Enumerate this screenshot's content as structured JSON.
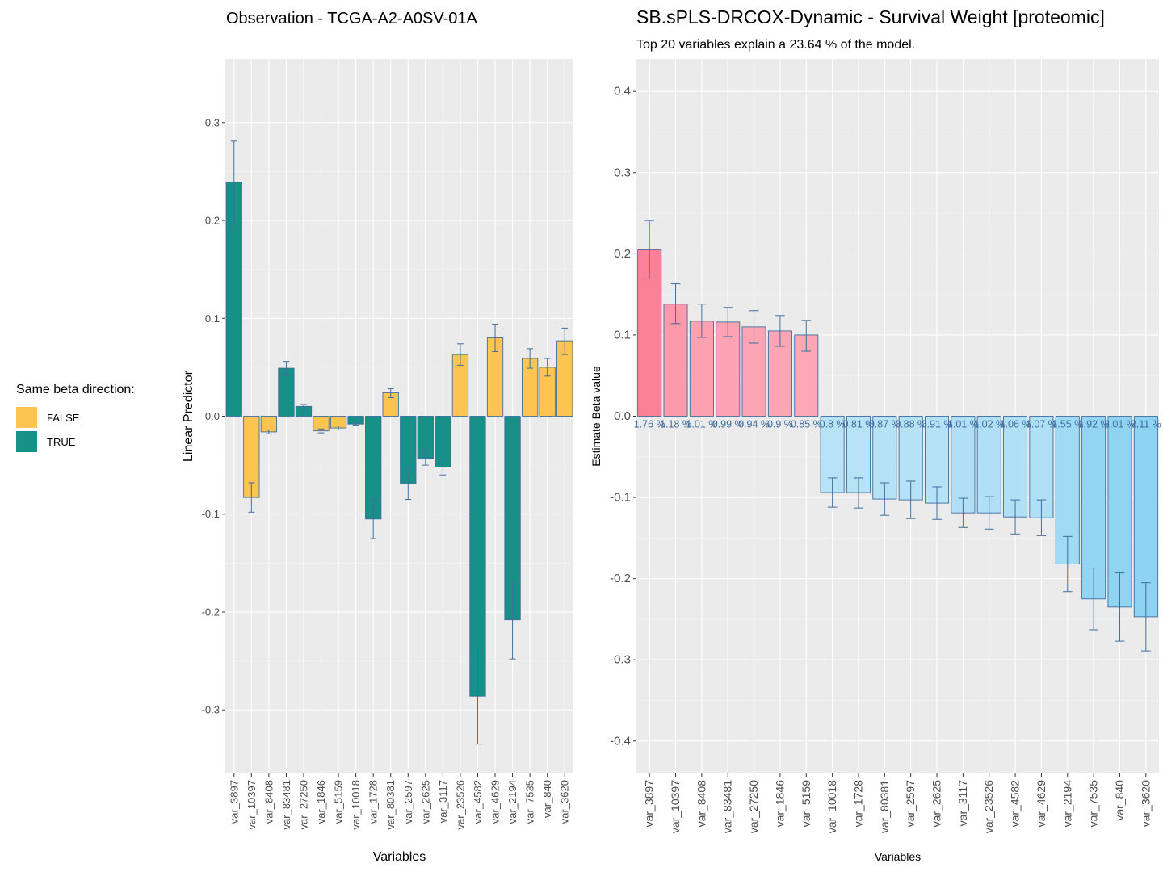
{
  "legend": {
    "title": "Same beta direction:",
    "items": [
      {
        "label": "FALSE",
        "color": "#FCC451"
      },
      {
        "label": "TRUE",
        "color": "#179087"
      }
    ]
  },
  "chart_data": [
    {
      "type": "bar",
      "title": "Observation - TCGA-A2-A0SV-01A",
      "xlabel": "Variables",
      "ylabel": "Linear Predictor",
      "ylim": [
        -0.365,
        0.365
      ],
      "y_ticks": [
        -0.3,
        -0.2,
        -0.1,
        0.0,
        0.1,
        0.2,
        0.3
      ],
      "categories": [
        "var_3897",
        "var_10397",
        "var_8408",
        "var_83481",
        "var_27250",
        "var_1846",
        "var_5159",
        "var_10018",
        "var_1728",
        "var_80381",
        "var_2597",
        "var_2625",
        "var_3117",
        "var_23526",
        "var_4582",
        "var_4629",
        "var_2194",
        "var_7535",
        "var_840",
        "var_3620"
      ],
      "values": [
        0.239,
        -0.083,
        -0.016,
        0.049,
        0.01,
        -0.015,
        -0.012,
        -0.008,
        -0.105,
        0.024,
        -0.069,
        -0.043,
        -0.052,
        0.063,
        -0.286,
        0.08,
        -0.208,
        0.059,
        0.05,
        0.077
      ],
      "error_low": [
        0.196,
        -0.098,
        -0.018,
        0.043,
        0.008,
        -0.017,
        -0.014,
        -0.009,
        -0.125,
        0.019,
        -0.085,
        -0.05,
        -0.06,
        0.052,
        -0.335,
        0.066,
        -0.248,
        0.049,
        0.041,
        0.063
      ],
      "error_high": [
        0.281,
        -0.068,
        -0.014,
        0.056,
        0.012,
        -0.013,
        -0.01,
        -0.007,
        -0.085,
        0.028,
        -0.054,
        -0.035,
        -0.044,
        0.074,
        -0.237,
        0.094,
        -0.168,
        0.069,
        0.059,
        0.09
      ],
      "same_direction": [
        true,
        false,
        false,
        true,
        true,
        false,
        false,
        true,
        true,
        false,
        true,
        true,
        true,
        false,
        true,
        false,
        true,
        false,
        false,
        false
      ],
      "grid": true
    },
    {
      "type": "bar",
      "title": "SB.sPLS-DRCOX-Dynamic - Survival Weight [proteomic]",
      "subtitle": "Top 20 variables explain a 23.64 % of the model.",
      "xlabel": "Variables",
      "ylabel": "Estimate Beta value",
      "ylim": [
        -0.44,
        0.44
      ],
      "y_ticks": [
        -0.4,
        -0.3,
        -0.2,
        -0.1,
        0.0,
        0.1,
        0.2,
        0.3,
        0.4
      ],
      "categories": [
        "var_3897",
        "var_10397",
        "var_8408",
        "var_83481",
        "var_27250",
        "var_1846",
        "var_5159",
        "var_10018",
        "var_1728",
        "var_80381",
        "var_2597",
        "var_2625",
        "var_3117",
        "var_23526",
        "var_4582",
        "var_4629",
        "var_2194",
        "var_7535",
        "var_840",
        "var_3620"
      ],
      "values": [
        0.205,
        0.138,
        0.117,
        0.116,
        0.11,
        0.105,
        0.1,
        -0.094,
        -0.094,
        -0.102,
        -0.103,
        -0.107,
        -0.119,
        -0.119,
        -0.124,
        -0.125,
        -0.182,
        -0.225,
        -0.235,
        -0.247
      ],
      "error_low": [
        0.169,
        0.114,
        0.097,
        0.098,
        0.09,
        0.086,
        0.08,
        -0.112,
        -0.113,
        -0.122,
        -0.126,
        -0.127,
        -0.137,
        -0.139,
        -0.145,
        -0.147,
        -0.216,
        -0.263,
        -0.277,
        -0.289
      ],
      "error_high": [
        0.241,
        0.163,
        0.138,
        0.134,
        0.13,
        0.124,
        0.118,
        -0.076,
        -0.076,
        -0.082,
        -0.08,
        -0.087,
        -0.101,
        -0.099,
        -0.103,
        -0.103,
        -0.148,
        -0.187,
        -0.193,
        -0.205
      ],
      "bar_labels": [
        "1.76 %",
        "1.18 %",
        "1.01 %",
        "0.99 %",
        "0.94 %",
        "0.9 %",
        "0.85 %",
        "0.8 %",
        "0.81 %",
        "0.87 %",
        "0.88 %",
        "0.91 %",
        "1.01 %",
        "1.02 %",
        "1.06 %",
        "1.07 %",
        "1.55 %",
        "1.92 %",
        "2.01 %",
        "2.11 %"
      ],
      "grid": true
    }
  ]
}
